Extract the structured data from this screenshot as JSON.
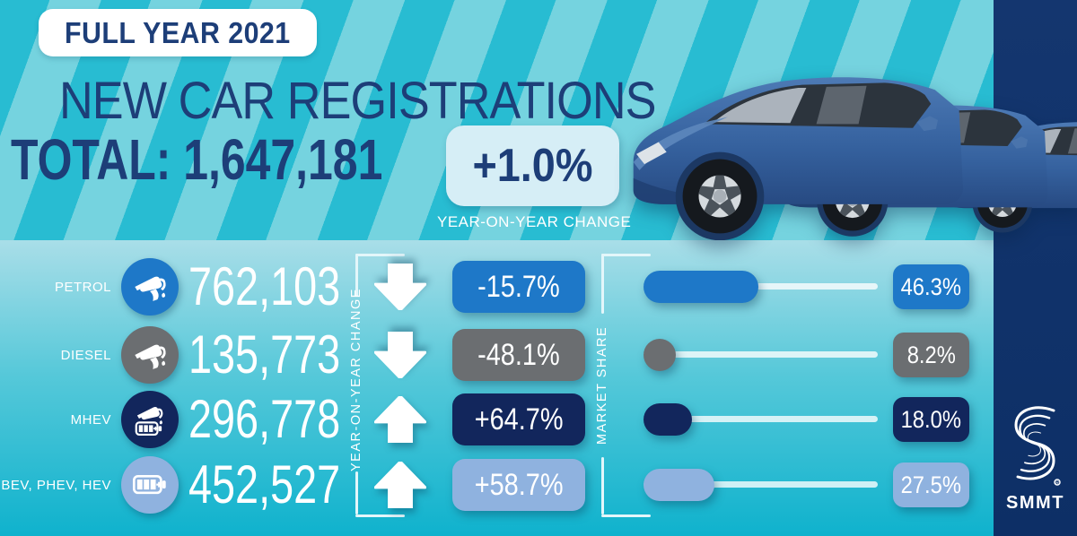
{
  "header": {
    "period_label": "FULL YEAR 2021",
    "title": "NEW CAR REGISTRATIONS",
    "total_label": "TOTAL: 1,647,181",
    "total_change": "+1.0%",
    "total_change_caption": "YEAR-ON-YEAR CHANGE"
  },
  "columns": {
    "yoy_label": "YEAR-ON-YEAR CHANGE",
    "market_share_label": "MARKET SHARE"
  },
  "rows": [
    {
      "label": "PETROL",
      "icon": "petrol-pump-icon",
      "registrations": "762,103",
      "direction": "down",
      "yoy_change": "-15.7%",
      "market_share": "46.3%",
      "share_pct": 46.3,
      "color": "#1e78c8"
    },
    {
      "label": "DIESEL",
      "icon": "diesel-pump-icon",
      "registrations": "135,773",
      "direction": "down",
      "yoy_change": "-48.1%",
      "market_share": "8.2%",
      "share_pct": 8.2,
      "color": "#6b6e71"
    },
    {
      "label": "MHEV",
      "icon": "hybrid-pump-battery-icon",
      "registrations": "296,778",
      "direction": "up",
      "yoy_change": "+64.7%",
      "market_share": "18.0%",
      "share_pct": 18.0,
      "color": "#12265c"
    },
    {
      "label": "BEV, PHEV, HEV",
      "icon": "ev-battery-icon",
      "registrations": "452,527",
      "direction": "up",
      "yoy_change": "+58.7%",
      "market_share": "27.5%",
      "share_pct": 27.5,
      "color": "#8fb2df"
    }
  ],
  "branding": {
    "logo_text": "SMMT"
  },
  "colors": {
    "navy_text": "#1d3e78",
    "stripe_dark": "#28bcd2",
    "stripe_light": "#75d3df",
    "band_bottom_top": "#a9dee8",
    "band_bottom_base": "#0fb2cd",
    "sidebar_navy": "#11326b",
    "petrol_blue": "#1e78c8",
    "diesel_gray": "#6b6e71",
    "mhev_navy": "#12265c",
    "ev_light_blue": "#8fb2df"
  },
  "chart_data": {
    "type": "bar",
    "title": "NEW CAR REGISTRATIONS — FULL YEAR 2021",
    "total_registrations": 1647181,
    "total_yoy_change_pct": 1.0,
    "categories": [
      "PETROL",
      "DIESEL",
      "MHEV",
      "BEV, PHEV, HEV"
    ],
    "series": [
      {
        "name": "Registrations",
        "values": [
          762103,
          135773,
          296778,
          452527
        ]
      },
      {
        "name": "Year-on-year change %",
        "values": [
          -15.7,
          -48.1,
          64.7,
          58.7
        ]
      },
      {
        "name": "Market share %",
        "values": [
          46.3,
          8.2,
          18.0,
          27.5
        ]
      }
    ],
    "legend_position": "none",
    "grid": false,
    "xlim_market_share": [
      0,
      100
    ]
  }
}
